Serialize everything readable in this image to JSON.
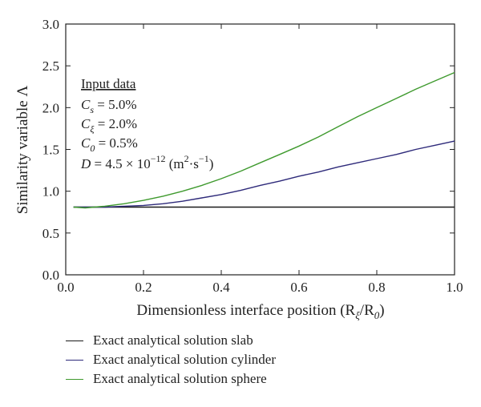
{
  "chart_data": {
    "type": "line",
    "xlabel": "Dimensionless interface position (R",
    "xlabel_sub": "ξ",
    "xlabel_mid": "/R",
    "xlabel_sub2": "0",
    "xlabel_end": ")",
    "ylabel": "Similarity variable Λ",
    "xlim": [
      0.0,
      1.0
    ],
    "ylim": [
      0.0,
      3.0
    ],
    "xticks": [
      "0.0",
      "0.2",
      "0.4",
      "0.6",
      "0.8",
      "1.0"
    ],
    "yticks": [
      "0.0",
      "0.5",
      "1.0",
      "1.5",
      "2.0",
      "2.5",
      "3.0"
    ],
    "grid": false,
    "legend_position": "below",
    "series": [
      {
        "name": "Exact analytical solution slab",
        "color": "#1a1a1a",
        "x": [
          0.02,
          0.1,
          0.2,
          0.3,
          0.4,
          0.5,
          0.6,
          0.7,
          0.8,
          0.9,
          1.0
        ],
        "y": [
          0.81,
          0.81,
          0.81,
          0.81,
          0.81,
          0.81,
          0.81,
          0.81,
          0.81,
          0.81,
          0.81
        ]
      },
      {
        "name": "Exact analytical solution cylinder",
        "color": "#2e2a7a",
        "x": [
          0.02,
          0.05,
          0.1,
          0.15,
          0.2,
          0.25,
          0.3,
          0.35,
          0.4,
          0.45,
          0.5,
          0.55,
          0.6,
          0.65,
          0.7,
          0.75,
          0.8,
          0.85,
          0.9,
          0.95,
          1.0
        ],
        "y": [
          0.81,
          0.81,
          0.81,
          0.82,
          0.83,
          0.85,
          0.88,
          0.92,
          0.96,
          1.01,
          1.07,
          1.12,
          1.18,
          1.23,
          1.29,
          1.34,
          1.39,
          1.44,
          1.5,
          1.55,
          1.6
        ]
      },
      {
        "name": "Exact analytical solution sphere",
        "color": "#3f9a2e",
        "x": [
          0.02,
          0.05,
          0.1,
          0.15,
          0.2,
          0.25,
          0.3,
          0.35,
          0.4,
          0.45,
          0.5,
          0.55,
          0.6,
          0.65,
          0.7,
          0.75,
          0.8,
          0.85,
          0.9,
          0.95,
          1.0
        ],
        "y": [
          0.81,
          0.8,
          0.82,
          0.85,
          0.89,
          0.94,
          1.0,
          1.07,
          1.15,
          1.24,
          1.34,
          1.44,
          1.54,
          1.65,
          1.77,
          1.89,
          2.0,
          2.11,
          2.22,
          2.32,
          2.42
        ]
      }
    ],
    "annotation": {
      "heading": "Input data",
      "lines": [
        {
          "var": "C",
          "sub": "s",
          "rest": " = 5.0%"
        },
        {
          "var": "C",
          "sub": "ξ",
          "rest": " = 2.0%"
        },
        {
          "var": "C",
          "sub": "0",
          "rest": " = 0.5%"
        }
      ],
      "d_line": {
        "var": "D",
        "eq": " = 4.5 × 10",
        "exp": "−12",
        "unit_open": " (m",
        "unit_exp": "2",
        "unit_mid": "·s",
        "unit_exp2": "−1",
        "unit_close": ")"
      }
    }
  }
}
